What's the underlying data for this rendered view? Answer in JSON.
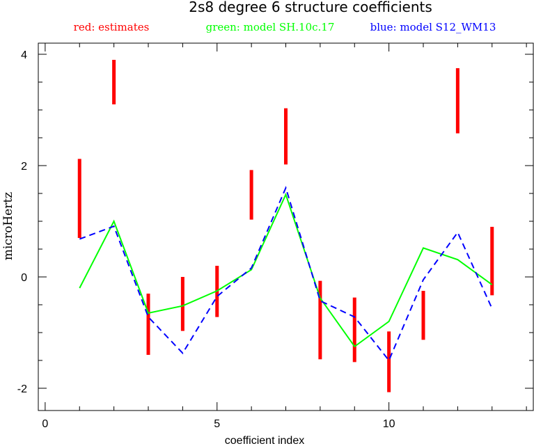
{
  "chart_data": {
    "type": "line",
    "title": "2s8 degree 6 structure coefficients",
    "xlabel": "coefficient index",
    "ylabel": "microHertz",
    "xlim": [
      -0.2,
      14.2
    ],
    "ylim": [
      -2.4,
      4.2
    ],
    "xticks": [
      0,
      5,
      10
    ],
    "yticks": [
      -2,
      0,
      2,
      4
    ],
    "legend_placement": "top",
    "legend": [
      {
        "text": "red: estimates",
        "color": "#ff0000"
      },
      {
        "text": "green: model SH.10c.17",
        "color": "#00ff00"
      },
      {
        "text": "blue: model S12_WM13",
        "color": "#0000ff"
      }
    ],
    "estimates": {
      "name": "estimates",
      "color": "#ff0000",
      "x": [
        1,
        2,
        3,
        4,
        5,
        6,
        7,
        8,
        9,
        10,
        11,
        12,
        13
      ],
      "low": [
        0.7,
        3.1,
        -1.4,
        -0.97,
        -0.72,
        1.03,
        2.02,
        -1.48,
        -1.53,
        -2.07,
        -1.13,
        2.58,
        -0.33
      ],
      "high": [
        2.12,
        3.9,
        -0.3,
        0.0,
        0.2,
        1.92,
        3.03,
        -0.07,
        -0.37,
        -0.98,
        -0.25,
        3.75,
        0.9
      ]
    },
    "series": [
      {
        "name": "model SH.10c.17",
        "color": "#00ff00",
        "style": "solid",
        "x": [
          1,
          2,
          3,
          4,
          5,
          6,
          7,
          8,
          9,
          10,
          11,
          12,
          13
        ],
        "y": [
          -0.2,
          1.0,
          -0.65,
          -0.52,
          -0.25,
          0.13,
          1.48,
          -0.38,
          -1.25,
          -0.8,
          0.52,
          0.31,
          -0.14
        ]
      },
      {
        "name": "model S12_WM13",
        "color": "#0000ff",
        "style": "dashed",
        "x": [
          1,
          2,
          3,
          4,
          5,
          6,
          7,
          8,
          9,
          10,
          11,
          12,
          13
        ],
        "y": [
          0.68,
          0.91,
          -0.72,
          -1.37,
          -0.35,
          0.16,
          1.6,
          -0.43,
          -0.72,
          -1.5,
          -0.05,
          0.8,
          -0.57
        ]
      }
    ]
  }
}
